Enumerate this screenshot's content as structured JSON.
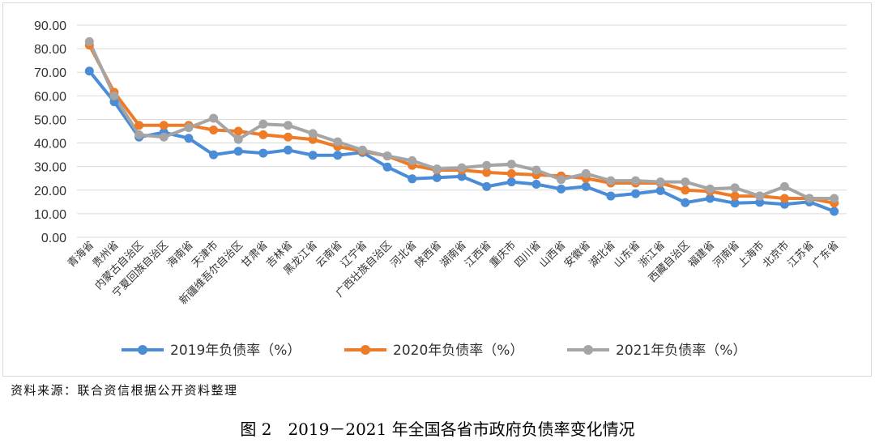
{
  "chart_data": {
    "type": "line",
    "title": "",
    "xlabel": "",
    "ylabel": "",
    "ylim": [
      0,
      90
    ],
    "yticks": [
      "0.00",
      "10.00",
      "20.00",
      "30.00",
      "40.00",
      "50.00",
      "60.00",
      "70.00",
      "80.00",
      "90.00"
    ],
    "grid": true,
    "legend_position": "bottom",
    "categories": [
      "青海省",
      "贵州省",
      "内蒙古自治区",
      "宁夏回族自治区",
      "海南省",
      "天津市",
      "新疆维吾尔自治区",
      "甘肃省",
      "吉林省",
      "黑龙江省",
      "云南省",
      "辽宁省",
      "广西壮族自治区",
      "河北省",
      "陕西省",
      "湖南省",
      "江西省",
      "重庆市",
      "四川省",
      "山西省",
      "安徽省",
      "湖北省",
      "山东省",
      "浙江省",
      "西藏自治区",
      "福建省",
      "河南省",
      "上海市",
      "北京市",
      "江苏省",
      "广东省"
    ],
    "series": [
      {
        "name": "2019年负债率（%）",
        "color": "#4a8cd6",
        "values": [
          70.5,
          57.5,
          42.5,
          44.5,
          42.0,
          35.0,
          36.5,
          35.7,
          37.0,
          34.8,
          34.8,
          36.0,
          29.8,
          24.8,
          25.3,
          25.8,
          21.5,
          23.5,
          22.5,
          20.5,
          21.5,
          17.5,
          18.5,
          19.8,
          14.7,
          16.5,
          14.5,
          14.8,
          14.0,
          15.0,
          11.0
        ]
      },
      {
        "name": "2020年负债率（%）",
        "color": "#ee7b28",
        "values": [
          81.5,
          61.5,
          47.5,
          47.5,
          47.5,
          45.5,
          45.0,
          43.5,
          42.5,
          41.5,
          38.5,
          36.5,
          34.5,
          30.5,
          28.5,
          28.5,
          27.5,
          27.0,
          26.5,
          26.0,
          25.0,
          23.0,
          23.0,
          23.0,
          20.0,
          19.5,
          17.5,
          17.5,
          16.5,
          16.5,
          14.5
        ]
      },
      {
        "name": "2021年负债率（%）",
        "color": "#a5a5a5",
        "values": [
          83.0,
          60.0,
          43.5,
          42.5,
          46.5,
          50.5,
          41.5,
          48.0,
          47.5,
          44.0,
          40.5,
          37.0,
          34.5,
          32.5,
          29.0,
          29.5,
          30.5,
          31.0,
          28.5,
          24.5,
          27.0,
          24.0,
          24.0,
          23.5,
          23.5,
          20.5,
          21.0,
          17.5,
          21.5,
          16.5,
          16.5
        ]
      }
    ]
  },
  "source_note": "资料来源：联合资信根据公开资料整理",
  "caption": "图 2　2019－2021 年全国各省市政府负债率变化情况"
}
